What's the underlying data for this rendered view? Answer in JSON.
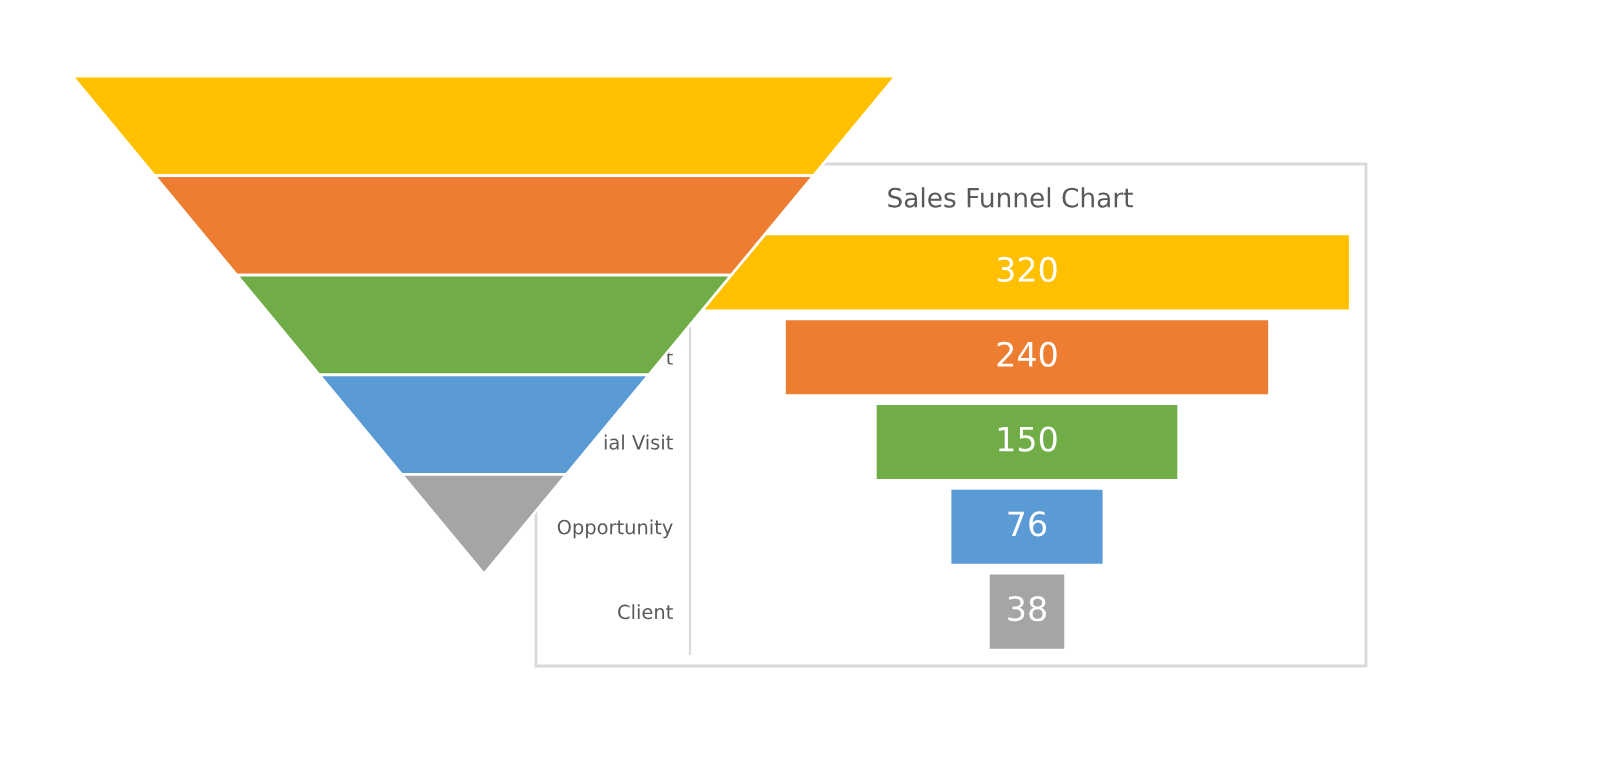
{
  "chart_data": {
    "type": "other",
    "title": "Sales Funnel Chart",
    "categories": [
      null,
      "t",
      "ial Visit",
      "Opportunity",
      "Client"
    ],
    "values": [
      320,
      240,
      150,
      76,
      38
    ],
    "colors": [
      "#ffc000",
      "#ed7d31",
      "#70ad47",
      "#5b9bd5",
      "#a5a5a5"
    ],
    "data_labels": true
  }
}
